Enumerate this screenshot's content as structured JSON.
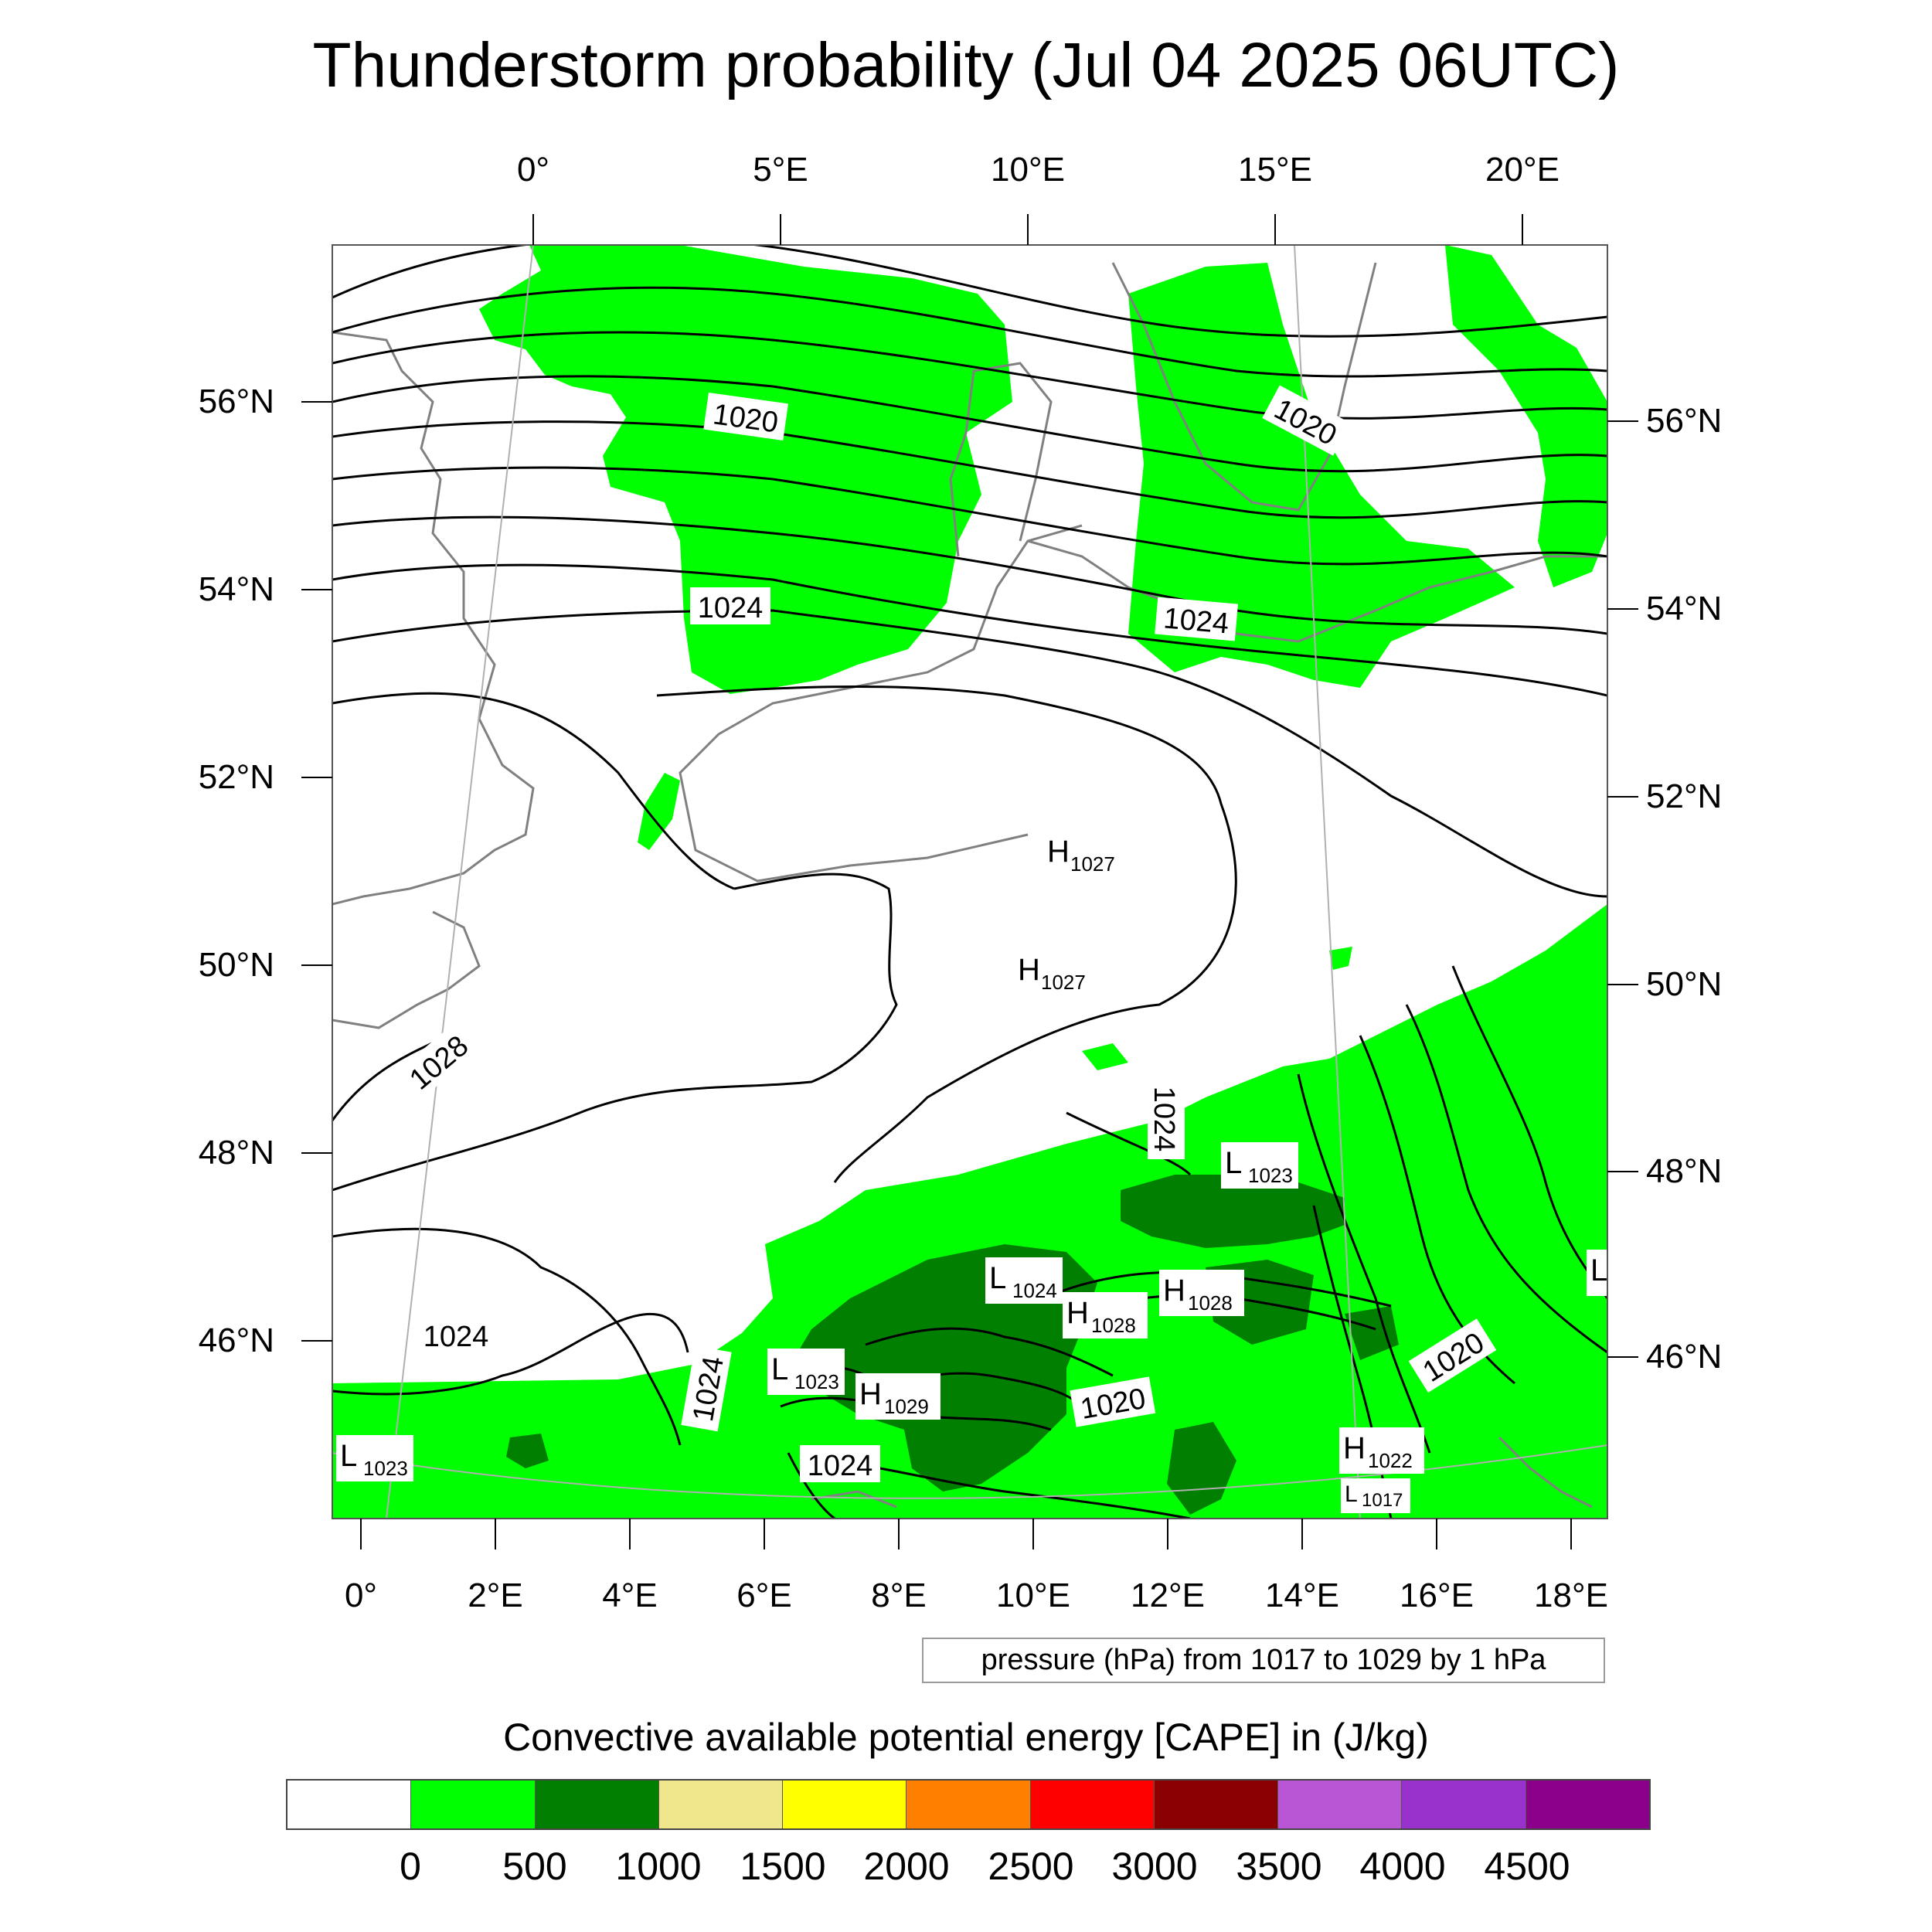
{
  "title": "Thunderstorm probability (Jul 04 2025 06UTC)",
  "map": {
    "top_axis_labels": [
      "0°",
      "5°E",
      "10°E",
      "15°E",
      "20°E"
    ],
    "bottom_axis_labels": [
      "0°",
      "2°E",
      "4°E",
      "6°E",
      "8°E",
      "10°E",
      "12°E",
      "14°E",
      "16°E",
      "18°E"
    ],
    "left_axis_labels": [
      "56°N",
      "54°N",
      "52°N",
      "50°N",
      "48°N",
      "46°N"
    ],
    "right_axis_labels": [
      "56°N",
      "54°N",
      "52°N",
      "50°N",
      "48°N",
      "46°N"
    ],
    "isobar_labels": [
      "1020",
      "1020",
      "1020",
      "1020",
      "1024",
      "1024",
      "1024",
      "1024",
      "1024",
      "1024",
      "1028"
    ],
    "pressure_centers": [
      {
        "type": "H",
        "value": "1027"
      },
      {
        "type": "H",
        "value": "1027"
      },
      {
        "type": "L",
        "value": "1023"
      },
      {
        "type": "L",
        "value": "1024"
      },
      {
        "type": "H",
        "value": "1028"
      },
      {
        "type": "H",
        "value": "1028"
      },
      {
        "type": "L",
        "value": "1023"
      },
      {
        "type": "H",
        "value": "1029"
      },
      {
        "type": "L",
        "value": "1023"
      },
      {
        "type": "H",
        "value": "1022"
      },
      {
        "type": "L",
        "value": "1017"
      },
      {
        "type": "L",
        "value": ""
      }
    ],
    "info_text": "pressure (hPa) from 1017 to 1029 by 1 hPa"
  },
  "colorbar": {
    "title": "Convective available potential energy [CAPE] in (J/kg)",
    "colors": [
      "#ffffff",
      "#00ff00",
      "#007f00",
      "#f0e68c",
      "#ffff00",
      "#ff8000",
      "#ff0000",
      "#8b0000",
      "#b856d6",
      "#9932cc",
      "#8b008b"
    ],
    "labels": [
      "0",
      "500",
      "1000",
      "1500",
      "2000",
      "2500",
      "3000",
      "3500",
      "4000",
      "4500"
    ]
  },
  "colors": {
    "light_green": "#00ff00",
    "dark_green": "#007f00",
    "isobar": "#000000",
    "coastline": "#808080"
  }
}
